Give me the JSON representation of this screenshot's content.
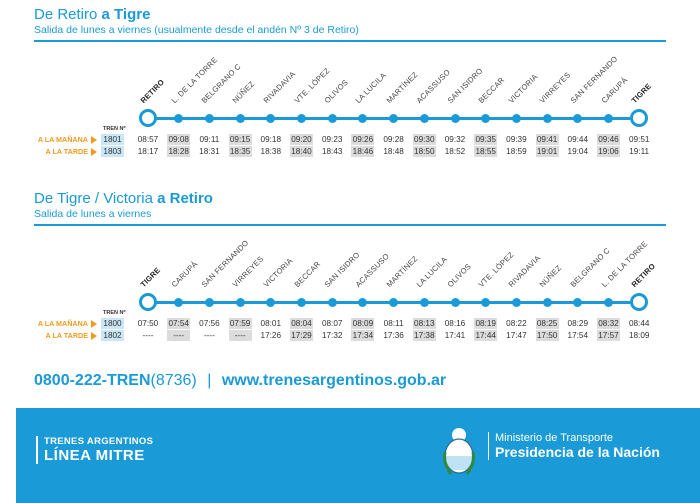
{
  "section1": {
    "title_from": "De Retiro",
    "title_to": "a Tigre",
    "subtitle": "Salida de lunes a viernes (usualmente desde el andén Nº 3 de Retiro)",
    "stations": [
      "RETIRO",
      "L. DE LA TORRE",
      "BELGRANO C",
      "NÚÑEZ",
      "RIVADAVIA",
      "VTE. LÓPEZ",
      "OLIVOS",
      "LA LUCILA",
      "MARTÍNEZ",
      "ACASSUSO",
      "SAN ISIDRO",
      "BECCAR",
      "VICTORIA",
      "VIRREYES",
      "SAN FERNANDO",
      "CARUPÁ",
      "TIGRE"
    ],
    "tren_header": "TREN Nº",
    "rows": [
      {
        "label": "A LA MAÑANA",
        "train": "1801",
        "times": [
          "08:57",
          "09:08",
          "09:11",
          "09:15",
          "09:18",
          "09:20",
          "09:23",
          "09:26",
          "09:28",
          "09:30",
          "09:32",
          "09:35",
          "09:39",
          "09:41",
          "09:44",
          "09:46",
          "09:51"
        ]
      },
      {
        "label": "A LA TARDE",
        "train": "1803",
        "times": [
          "18:17",
          "18:28",
          "18:31",
          "18:35",
          "18:38",
          "18:40",
          "18:43",
          "18:46",
          "18:48",
          "18:50",
          "18:52",
          "18:55",
          "18:59",
          "19:01",
          "19:04",
          "19:06",
          "19:11"
        ]
      }
    ]
  },
  "section2": {
    "title_from": "De Tigre / Victoria",
    "title_to": "a Retiro",
    "subtitle": "Salida de lunes a viernes",
    "stations": [
      "TIGRE",
      "CARUPÁ",
      "SAN FERNANDO",
      "VIRREYES",
      "VICTORIA",
      "BECCAR",
      "SAN ISIDRO",
      "ACASSUSO",
      "MARTÍNEZ",
      "LA LUCILA",
      "OLIVOS",
      "VTE. LÓPEZ",
      "RIVADAVIA",
      "NÚÑEZ",
      "BELGRANO C",
      "L. DE LA TORRE",
      "RETIRO"
    ],
    "tren_header": "TREN Nº",
    "rows": [
      {
        "label": "A LA MAÑANA",
        "train": "1800",
        "times": [
          "07:50",
          "07:54",
          "07:56",
          "07:59",
          "08:01",
          "08:04",
          "08:07",
          "08:09",
          "08:11",
          "08:13",
          "08:16",
          "08:19",
          "08:22",
          "08:25",
          "08:29",
          "08:32",
          "08:44"
        ]
      },
      {
        "label": "A LA TARDE",
        "train": "1802",
        "times": [
          "----",
          "----",
          "----",
          "----",
          "17:26",
          "17:29",
          "17:32",
          "17:34",
          "17:36",
          "17:38",
          "17:41",
          "17:44",
          "17:47",
          "17:50",
          "17:54",
          "17:57",
          "18:09"
        ]
      }
    ]
  },
  "contact": {
    "phone_bold": "0800-222-TREN",
    "phone_light": "(8736)",
    "separator": "|",
    "website": "www.trenesargentinos.gob.ar"
  },
  "footer": {
    "brand_line1": "TRENES ARGENTINOS",
    "brand_line2": "LÍNEA MITRE",
    "ministry_line1": "Ministerio de Transporte",
    "ministry_line2": "Presidencia de la Nación"
  },
  "colors": {
    "accent": "#1a9ad6",
    "orange": "#f29b1f",
    "shade": "#dcdcdc",
    "train_bg": "#c9e7f6"
  }
}
